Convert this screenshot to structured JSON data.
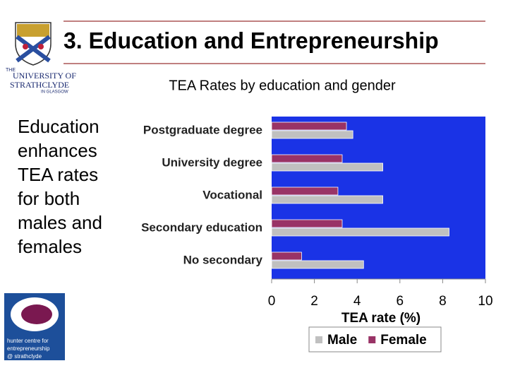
{
  "slide_title": "3. Education and Entrepreneurship",
  "body_lines": [
    "Education",
    "enhances",
    "TEA rates",
    "for both",
    "males and",
    "females"
  ],
  "logos": {
    "university": [
      "THE",
      "UNIVERSITY OF",
      "STRATHCLYDE",
      "IN GLASGOW"
    ],
    "hunter": [
      "hunter centre for",
      "entrepreneurship",
      "@ strathclyde"
    ]
  },
  "chart_data": {
    "type": "hbar",
    "title": "TEA Rates by education and gender",
    "x_label": "TEA rate  (%)",
    "categories": [
      "Postgraduate degree",
      "University degree",
      "Vocational",
      "Secondary education",
      "No secondary"
    ],
    "series": [
      {
        "name": "Male",
        "color": "#c0c0c0",
        "values": [
          3.8,
          5.2,
          5.2,
          8.3,
          4.3
        ]
      },
      {
        "name": "Female",
        "color": "#993366",
        "values": [
          3.5,
          3.3,
          3.1,
          3.3,
          1.4
        ]
      }
    ],
    "xlim": [
      0,
      10
    ],
    "xticks": [
      0,
      2,
      4,
      6,
      8,
      10
    ],
    "plot_background": "#1a33e6"
  }
}
